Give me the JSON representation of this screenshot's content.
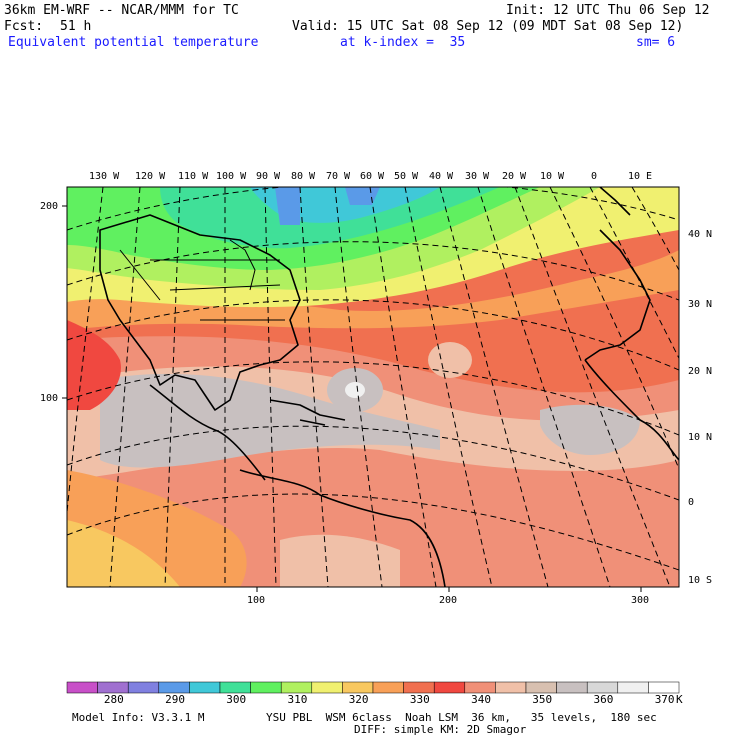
{
  "header": {
    "model": "36km EM-WRF -- NCAR/MMM for TC",
    "init": "Init: 12 UTC Thu 06 Sep 12",
    "fcst_label": "Fcst:",
    "fcst_value": "51 h",
    "valid": "Valid: 15 UTC Sat 08 Sep 12 (09 MDT Sat 08 Sep 12)",
    "field": "Equivalent potential temperature",
    "level": "at k-index =  35",
    "smooth": "sm= 6"
  },
  "longitude_labels": [
    "130 W",
    "120 W",
    "110 W",
    "100 W",
    "90 W",
    "80 W",
    "70 W",
    "60 W",
    "50 W",
    "40 W",
    "30 W",
    "20 W",
    "10 W",
    "0",
    "10 E"
  ],
  "latitude_labels": [
    "40 N",
    "30 N",
    "20 N",
    "10 N",
    "0",
    "10 S"
  ],
  "grid_y_labels": [
    "200",
    "100"
  ],
  "grid_x_labels": [
    "100",
    "200",
    "300"
  ],
  "colorbar": {
    "colors": [
      "#c850c8",
      "#a070d0",
      "#8080e0",
      "#5a9ae8",
      "#40c8d8",
      "#40e098",
      "#60f060",
      "#b0f060",
      "#f0f070",
      "#f8c860",
      "#f8a058",
      "#f07050",
      "#f04840",
      "#f09078",
      "#f0c0a8",
      "#d8c0b0",
      "#c8c0c0",
      "#d8d8d8",
      "#f0f0f0",
      "#ffffff"
    ],
    "labels": [
      "280",
      "290",
      "300",
      "310",
      "320",
      "330",
      "340",
      "350",
      "360",
      "370"
    ],
    "unit": "K"
  },
  "footer": {
    "info": "Model Info: V3.3.1 M",
    "physics1": "YSU PBL  WSM 6class  Noah LSM  36 km,   35 levels,  180 sec",
    "physics2": "DIFF: simple KM: 2D Smagor"
  }
}
